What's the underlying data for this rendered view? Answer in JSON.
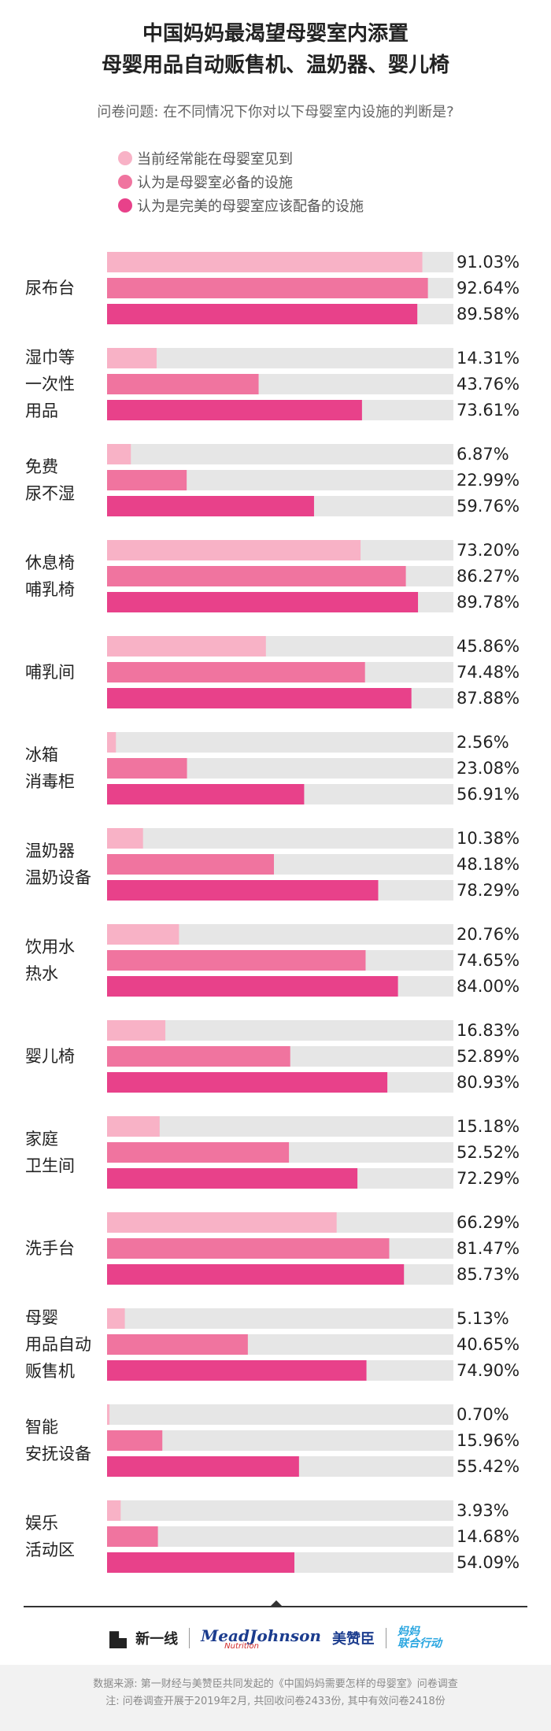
{
  "title_line1": "中国妈妈最渴望母婴室内添置",
  "title_line2": "母婴用品自动贩售机、温奶器、婴儿椅",
  "question": "问卷问题: 在不同情况下你对以下母婴室内设施的判断是?",
  "colors": {
    "series1": "#f8b2c6",
    "series2": "#f0749f",
    "series3": "#e8418a",
    "track": "#e6e6e6"
  },
  "chart_data": {
    "type": "bar",
    "orientation": "horizontal",
    "xlim": [
      0,
      100
    ],
    "legend_position": "top",
    "series": [
      {
        "name": "当前经常能在母婴室见到",
        "values": [
          91.03,
          14.31,
          6.87,
          73.2,
          45.86,
          2.56,
          10.38,
          20.76,
          16.83,
          15.18,
          66.29,
          5.13,
          0.7,
          3.93
        ]
      },
      {
        "name": "认为是母婴室必备的设施",
        "values": [
          92.64,
          43.76,
          22.99,
          86.27,
          74.48,
          23.08,
          48.18,
          74.65,
          52.89,
          52.52,
          81.47,
          40.65,
          15.96,
          14.68
        ]
      },
      {
        "name": "认为是完美的母婴室应该配备的设施",
        "values": [
          89.58,
          73.61,
          59.76,
          89.78,
          87.88,
          56.91,
          78.29,
          84.0,
          80.93,
          72.29,
          85.73,
          74.9,
          55.42,
          54.09
        ]
      }
    ],
    "categories": [
      [
        "尿布台"
      ],
      [
        "湿巾等",
        "一次性",
        "用品"
      ],
      [
        "免费",
        "尿不湿"
      ],
      [
        "休息椅",
        "哺乳椅"
      ],
      [
        "哺乳间"
      ],
      [
        "冰箱",
        "消毒柜"
      ],
      [
        "温奶器",
        "温奶设备"
      ],
      [
        "饮用水",
        "热水"
      ],
      [
        "婴儿椅"
      ],
      [
        "家庭",
        "卫生间"
      ],
      [
        "洗手台"
      ],
      [
        "母婴",
        "用品自动",
        "贩售机"
      ],
      [
        "智能",
        "安抚设备"
      ],
      [
        "娱乐",
        "活动区"
      ]
    ],
    "value_labels": [
      [
        "91.03%",
        "92.64%",
        "89.58%"
      ],
      [
        "14.31%",
        "43.76%",
        "73.61%"
      ],
      [
        "6.87%",
        "22.99%",
        "59.76%"
      ],
      [
        "73.20%",
        "86.27%",
        "89.78%"
      ],
      [
        "45.86%",
        "74.48%",
        "87.88%"
      ],
      [
        "2.56%",
        "23.08%",
        "56.91%"
      ],
      [
        "10.38%",
        "48.18%",
        "78.29%"
      ],
      [
        "20.76%",
        "74.65%",
        "84.00%"
      ],
      [
        "16.83%",
        "52.89%",
        "80.93%"
      ],
      [
        "15.18%",
        "52.52%",
        "72.29%"
      ],
      [
        "66.29%",
        "81.47%",
        "85.73%"
      ],
      [
        "5.13%",
        "40.65%",
        "74.90%"
      ],
      [
        "0.70%",
        "15.96%",
        "55.42%"
      ],
      [
        "3.93%",
        "14.68%",
        "54.09%"
      ]
    ]
  },
  "footer": {
    "logo1": "新一线",
    "logo2": "MeadJohnson",
    "logo2_sub": "Nutrition",
    "logo3": "美赞臣",
    "logo4_line1": "妈妈",
    "logo4_line2": "联合行动",
    "source": "数据来源: 第一财经与美赞臣共同发起的《中国妈妈需要怎样的母婴室》问卷调查",
    "note": "注: 问卷调查开展于2019年2月, 共回收问卷2433份, 其中有效问卷2418份"
  }
}
